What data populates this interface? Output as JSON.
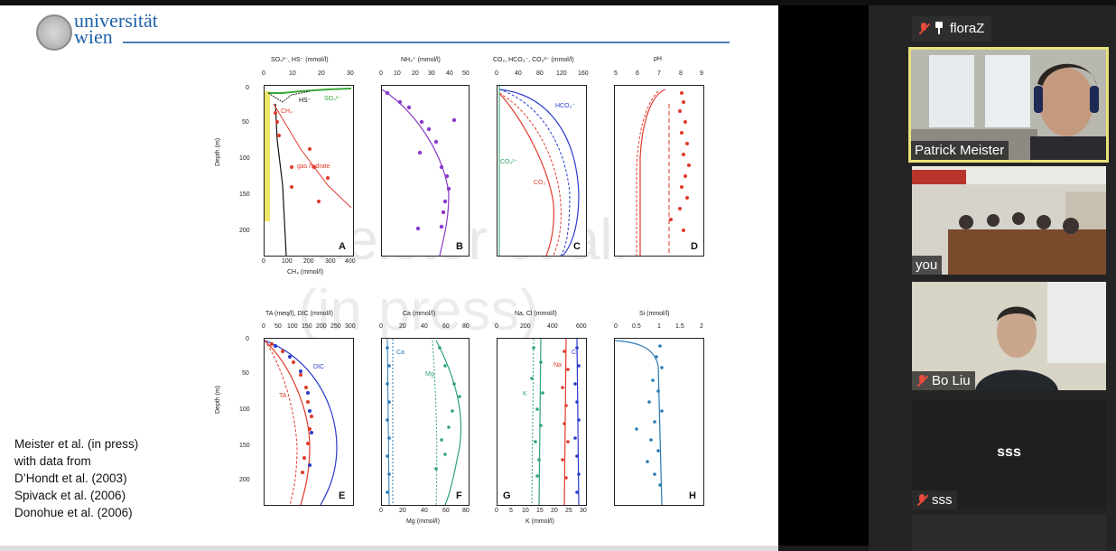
{
  "slide": {
    "logo_text_line1": "universität",
    "logo_text_line2": "wien",
    "citation": [
      "Meister et al. (in press)",
      "with data from",
      "D’Hondt et al. (2003)",
      "Spivack et al. (2006)",
      "Donohue et al. (2006)"
    ],
    "watermark_line1": "Meister et al.",
    "watermark_line2": "(in press)",
    "depth_axis_label": "Depth (m)",
    "depth_ticks": [
      "0",
      "50",
      "100",
      "150",
      "200"
    ],
    "panels": [
      {
        "letter": "A",
        "top_title": "SO₄²⁻, HS⁻ (mmol/l)",
        "top_ticks": [
          "0",
          "10",
          "20",
          "30"
        ],
        "bottom_title": "CH₄ (mmol/l)",
        "bottom_ticks": [
          "0",
          "100",
          "200",
          "300",
          "400"
        ],
        "labels": [
          "HS⁻",
          "SO₄²⁻",
          "CH₄",
          "gas hydrate"
        ]
      },
      {
        "letter": "B",
        "top_title": "NH₄⁺ (mmol/l)",
        "top_ticks": [
          "0",
          "10",
          "20",
          "30",
          "40",
          "50"
        ]
      },
      {
        "letter": "C",
        "top_title": "CO₂, HCO₃⁻, CO₃²⁻ (mmol/l)",
        "top_ticks": [
          "0",
          "40",
          "80",
          "120",
          "160"
        ],
        "labels": [
          "HCO₃⁻",
          "CO₃²⁻",
          "CO₂"
        ]
      },
      {
        "letter": "D",
        "top_title": "pH",
        "top_ticks": [
          "5",
          "6",
          "7",
          "8",
          "9"
        ]
      },
      {
        "letter": "E",
        "top_title": "TA (meq/l), DIC (mmol/l)",
        "top_ticks": [
          "0",
          "50",
          "100",
          "150",
          "200",
          "250",
          "300"
        ],
        "labels": [
          "DIC",
          "TA"
        ]
      },
      {
        "letter": "F",
        "top_title": "Ca (mmol/l)",
        "top_ticks": [
          "0",
          "20",
          "40",
          "60",
          "80"
        ],
        "bottom_title": "Mg (mmol/l)",
        "bottom_ticks": [
          "0",
          "20",
          "40",
          "60",
          "80"
        ],
        "labels": [
          "Ca",
          "Mg"
        ]
      },
      {
        "letter": "G",
        "top_title": "Na, Cl (mmol/l)",
        "top_ticks": [
          "0",
          "200",
          "400",
          "600"
        ],
        "bottom_title": "K (mmol/l)",
        "bottom_ticks": [
          "0",
          "5",
          "10",
          "15",
          "20",
          "25",
          "30"
        ],
        "labels": [
          "Cl",
          "Na",
          "K"
        ]
      },
      {
        "letter": "H",
        "top_title": "Si (mmol/l)",
        "top_ticks": [
          "0",
          "0.5",
          "1",
          "1.5",
          "2"
        ]
      }
    ]
  },
  "participants": [
    {
      "name": "floraZ",
      "muted": true,
      "pinned": true
    },
    {
      "name": "Patrick Meister",
      "muted": false,
      "active_speaker": true
    },
    {
      "name": "you",
      "muted": false
    },
    {
      "name": "Bo Liu",
      "muted": true
    },
    {
      "name": "sss",
      "muted": true,
      "avatar_text": "sss"
    }
  ],
  "colors": {
    "accent_speaker": "#e8e27a",
    "mute_red": "#e84a3b",
    "logo_blue": "#1f63a8"
  }
}
